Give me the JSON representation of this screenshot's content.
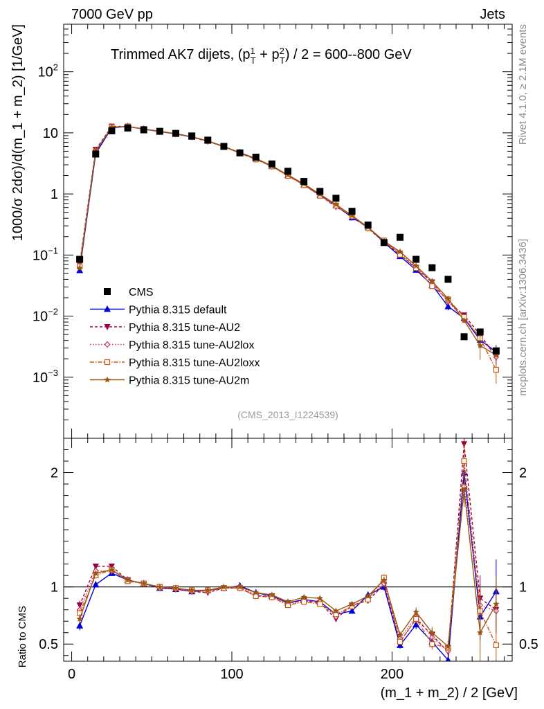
{
  "header": {
    "left": "7000 GeV pp",
    "right": "Jets"
  },
  "side_labels": {
    "top": "Rivet 4.1.0, ≥ 2.1M events",
    "bottom": "mcplots.cern.ch [arXiv:1306.3436]"
  },
  "watermark": "(CMS_2013_I1224539)",
  "chart_data": {
    "type": "line",
    "title": "Trimmed AK7 dijets, (p_T^1 + p_T^2) / 2 = 600--800 GeV",
    "title_parts": {
      "a": "Trimmed AK7 dijets, (p",
      "sup1": "1",
      "sub1": "T",
      "b": " + p",
      "sup2": "2",
      "sub2": "T",
      "c": ") / 2 = 600--800 GeV"
    },
    "xlabel": "(m_1 + m_2) / 2 [GeV]",
    "ylabel": "1000/σ   2dσ)/d(m_1 + m_2) [1/GeV]",
    "ratio_ylabel": "Ratio to CMS",
    "xlim": [
      -5,
      275
    ],
    "ylim": [
      0.0001,
      600
    ],
    "yscale": "log",
    "ratio_ylim": [
      0.35,
      2.3
    ],
    "x_ticks": [
      0,
      100,
      200
    ],
    "y_ticks": [
      {
        "value": 0.001,
        "base": "10",
        "exp": "−3"
      },
      {
        "value": 0.01,
        "base": "10",
        "exp": "−2"
      },
      {
        "value": 0.1,
        "base": "10",
        "exp": "−1"
      },
      {
        "value": 1,
        "base": "1",
        "exp": ""
      },
      {
        "value": 10,
        "base": "10",
        "exp": ""
      },
      {
        "value": 100,
        "base": "10",
        "exp": "2"
      }
    ],
    "ratio_ticks": [
      {
        "value": 0.5,
        "label": "0.5"
      },
      {
        "value": 1,
        "label": "1"
      },
      {
        "value": 2,
        "label": "2"
      }
    ],
    "x": [
      5,
      15,
      25,
      35,
      45,
      55,
      65,
      75,
      85,
      95,
      105,
      115,
      125,
      135,
      145,
      155,
      165,
      175,
      185,
      195,
      205,
      215,
      225,
      235,
      245,
      255,
      265
    ],
    "data": {
      "name": "CMS",
      "color": "#000000",
      "values": [
        0.085,
        4.5,
        10.8,
        12.0,
        11.2,
        10.6,
        9.8,
        8.9,
        7.6,
        6.0,
        4.7,
        4.0,
        3.1,
        2.35,
        1.6,
        1.1,
        0.85,
        0.52,
        0.31,
        0.16,
        0.195,
        0.085,
        0.062,
        0.04,
        0.0046,
        0.0055,
        0.0027
      ]
    },
    "series": [
      {
        "name": "Pythia 8.315 default",
        "color": "#0000dd",
        "dash": "",
        "marker": "triangle-up",
        "ratio": [
          0.66,
          1.02,
          1.12,
          1.06,
          1.03,
          0.99,
          0.98,
          0.96,
          0.97,
          0.99,
          1.01,
          0.95,
          0.92,
          0.86,
          0.89,
          0.87,
          0.76,
          0.79,
          0.93,
          1.0,
          0.49,
          0.67,
          0.52,
          0.36,
          2.0,
          0.74,
          0.96
        ],
        "err": [
          0.04,
          0.02,
          0.01,
          0.01,
          0.01,
          0.01,
          0.01,
          0.01,
          0.01,
          0.01,
          0.01,
          0.01,
          0.01,
          0.01,
          0.02,
          0.02,
          0.02,
          0.02,
          0.02,
          0.03,
          0.03,
          0.04,
          0.05,
          0.05,
          0.15,
          0.2,
          0.28
        ]
      },
      {
        "name": "Pythia 8.315 tune-AU2",
        "color": "#990044",
        "dash": "4,3",
        "marker": "triangle-down",
        "ratio": [
          0.84,
          1.18,
          1.18,
          1.06,
          1.03,
          1.0,
          0.98,
          0.96,
          0.95,
          0.99,
          0.99,
          0.92,
          0.92,
          0.86,
          0.88,
          0.86,
          0.72,
          0.84,
          0.88,
          1.02,
          0.52,
          0.72,
          0.58,
          0.43,
          2.25,
          0.9,
          0.8
        ],
        "err": [
          0.04,
          0.02,
          0.01,
          0.01,
          0.01,
          0.01,
          0.01,
          0.01,
          0.01,
          0.01,
          0.01,
          0.01,
          0.01,
          0.01,
          0.02,
          0.02,
          0.02,
          0.02,
          0.02,
          0.03,
          0.03,
          0.04,
          0.05,
          0.05,
          0.15,
          0.2,
          0.2
        ]
      },
      {
        "name": "Pythia 8.315 tune-AU2lox",
        "color": "#cc3366",
        "dash": "1.5,2.5",
        "marker": "diamond",
        "ratio": [
          0.8,
          1.14,
          1.14,
          1.06,
          1.03,
          0.99,
          0.98,
          0.96,
          0.96,
          0.99,
          1.0,
          0.93,
          0.91,
          0.85,
          0.88,
          0.87,
          0.74,
          0.83,
          0.9,
          1.03,
          0.55,
          0.74,
          0.56,
          0.44,
          1.88,
          0.84,
          0.79
        ],
        "err": [
          0.04,
          0.02,
          0.01,
          0.01,
          0.01,
          0.01,
          0.01,
          0.01,
          0.01,
          0.01,
          0.01,
          0.01,
          0.01,
          0.01,
          0.02,
          0.02,
          0.02,
          0.02,
          0.02,
          0.03,
          0.03,
          0.04,
          0.05,
          0.05,
          0.15,
          0.2,
          0.2
        ]
      },
      {
        "name": "Pythia 8.315 tune-AU2loxx",
        "color": "#cc5511",
        "dash": "6,2,1.5,2",
        "marker": "square-open",
        "ratio": [
          0.77,
          1.1,
          1.15,
          1.05,
          1.03,
          1.0,
          0.99,
          0.97,
          0.97,
          0.99,
          0.99,
          0.92,
          0.91,
          0.84,
          0.87,
          0.85,
          0.76,
          0.83,
          0.89,
          1.08,
          0.52,
          0.72,
          0.5,
          0.47,
          2.1,
          0.79,
          0.49
        ],
        "err": [
          0.04,
          0.02,
          0.01,
          0.01,
          0.01,
          0.01,
          0.01,
          0.01,
          0.01,
          0.01,
          0.01,
          0.01,
          0.01,
          0.01,
          0.02,
          0.02,
          0.02,
          0.02,
          0.02,
          0.03,
          0.03,
          0.04,
          0.05,
          0.05,
          0.15,
          0.2,
          0.2
        ]
      },
      {
        "name": "Pythia 8.315 tune-AU2m",
        "color": "#995511",
        "dash": "",
        "marker": "star",
        "ratio": [
          0.72,
          1.12,
          1.15,
          1.06,
          1.03,
          1.0,
          0.99,
          0.97,
          0.97,
          1.0,
          1.0,
          0.95,
          0.93,
          0.87,
          0.91,
          0.9,
          0.79,
          0.85,
          0.92,
          1.06,
          0.58,
          0.78,
          0.6,
          0.48,
          1.85,
          0.6,
          0.85
        ],
        "err": [
          0.04,
          0.02,
          0.01,
          0.01,
          0.01,
          0.01,
          0.01,
          0.01,
          0.01,
          0.01,
          0.01,
          0.01,
          0.01,
          0.01,
          0.02,
          0.02,
          0.02,
          0.02,
          0.02,
          0.03,
          0.03,
          0.04,
          0.05,
          0.05,
          0.15,
          0.25,
          0.25
        ]
      }
    ]
  }
}
